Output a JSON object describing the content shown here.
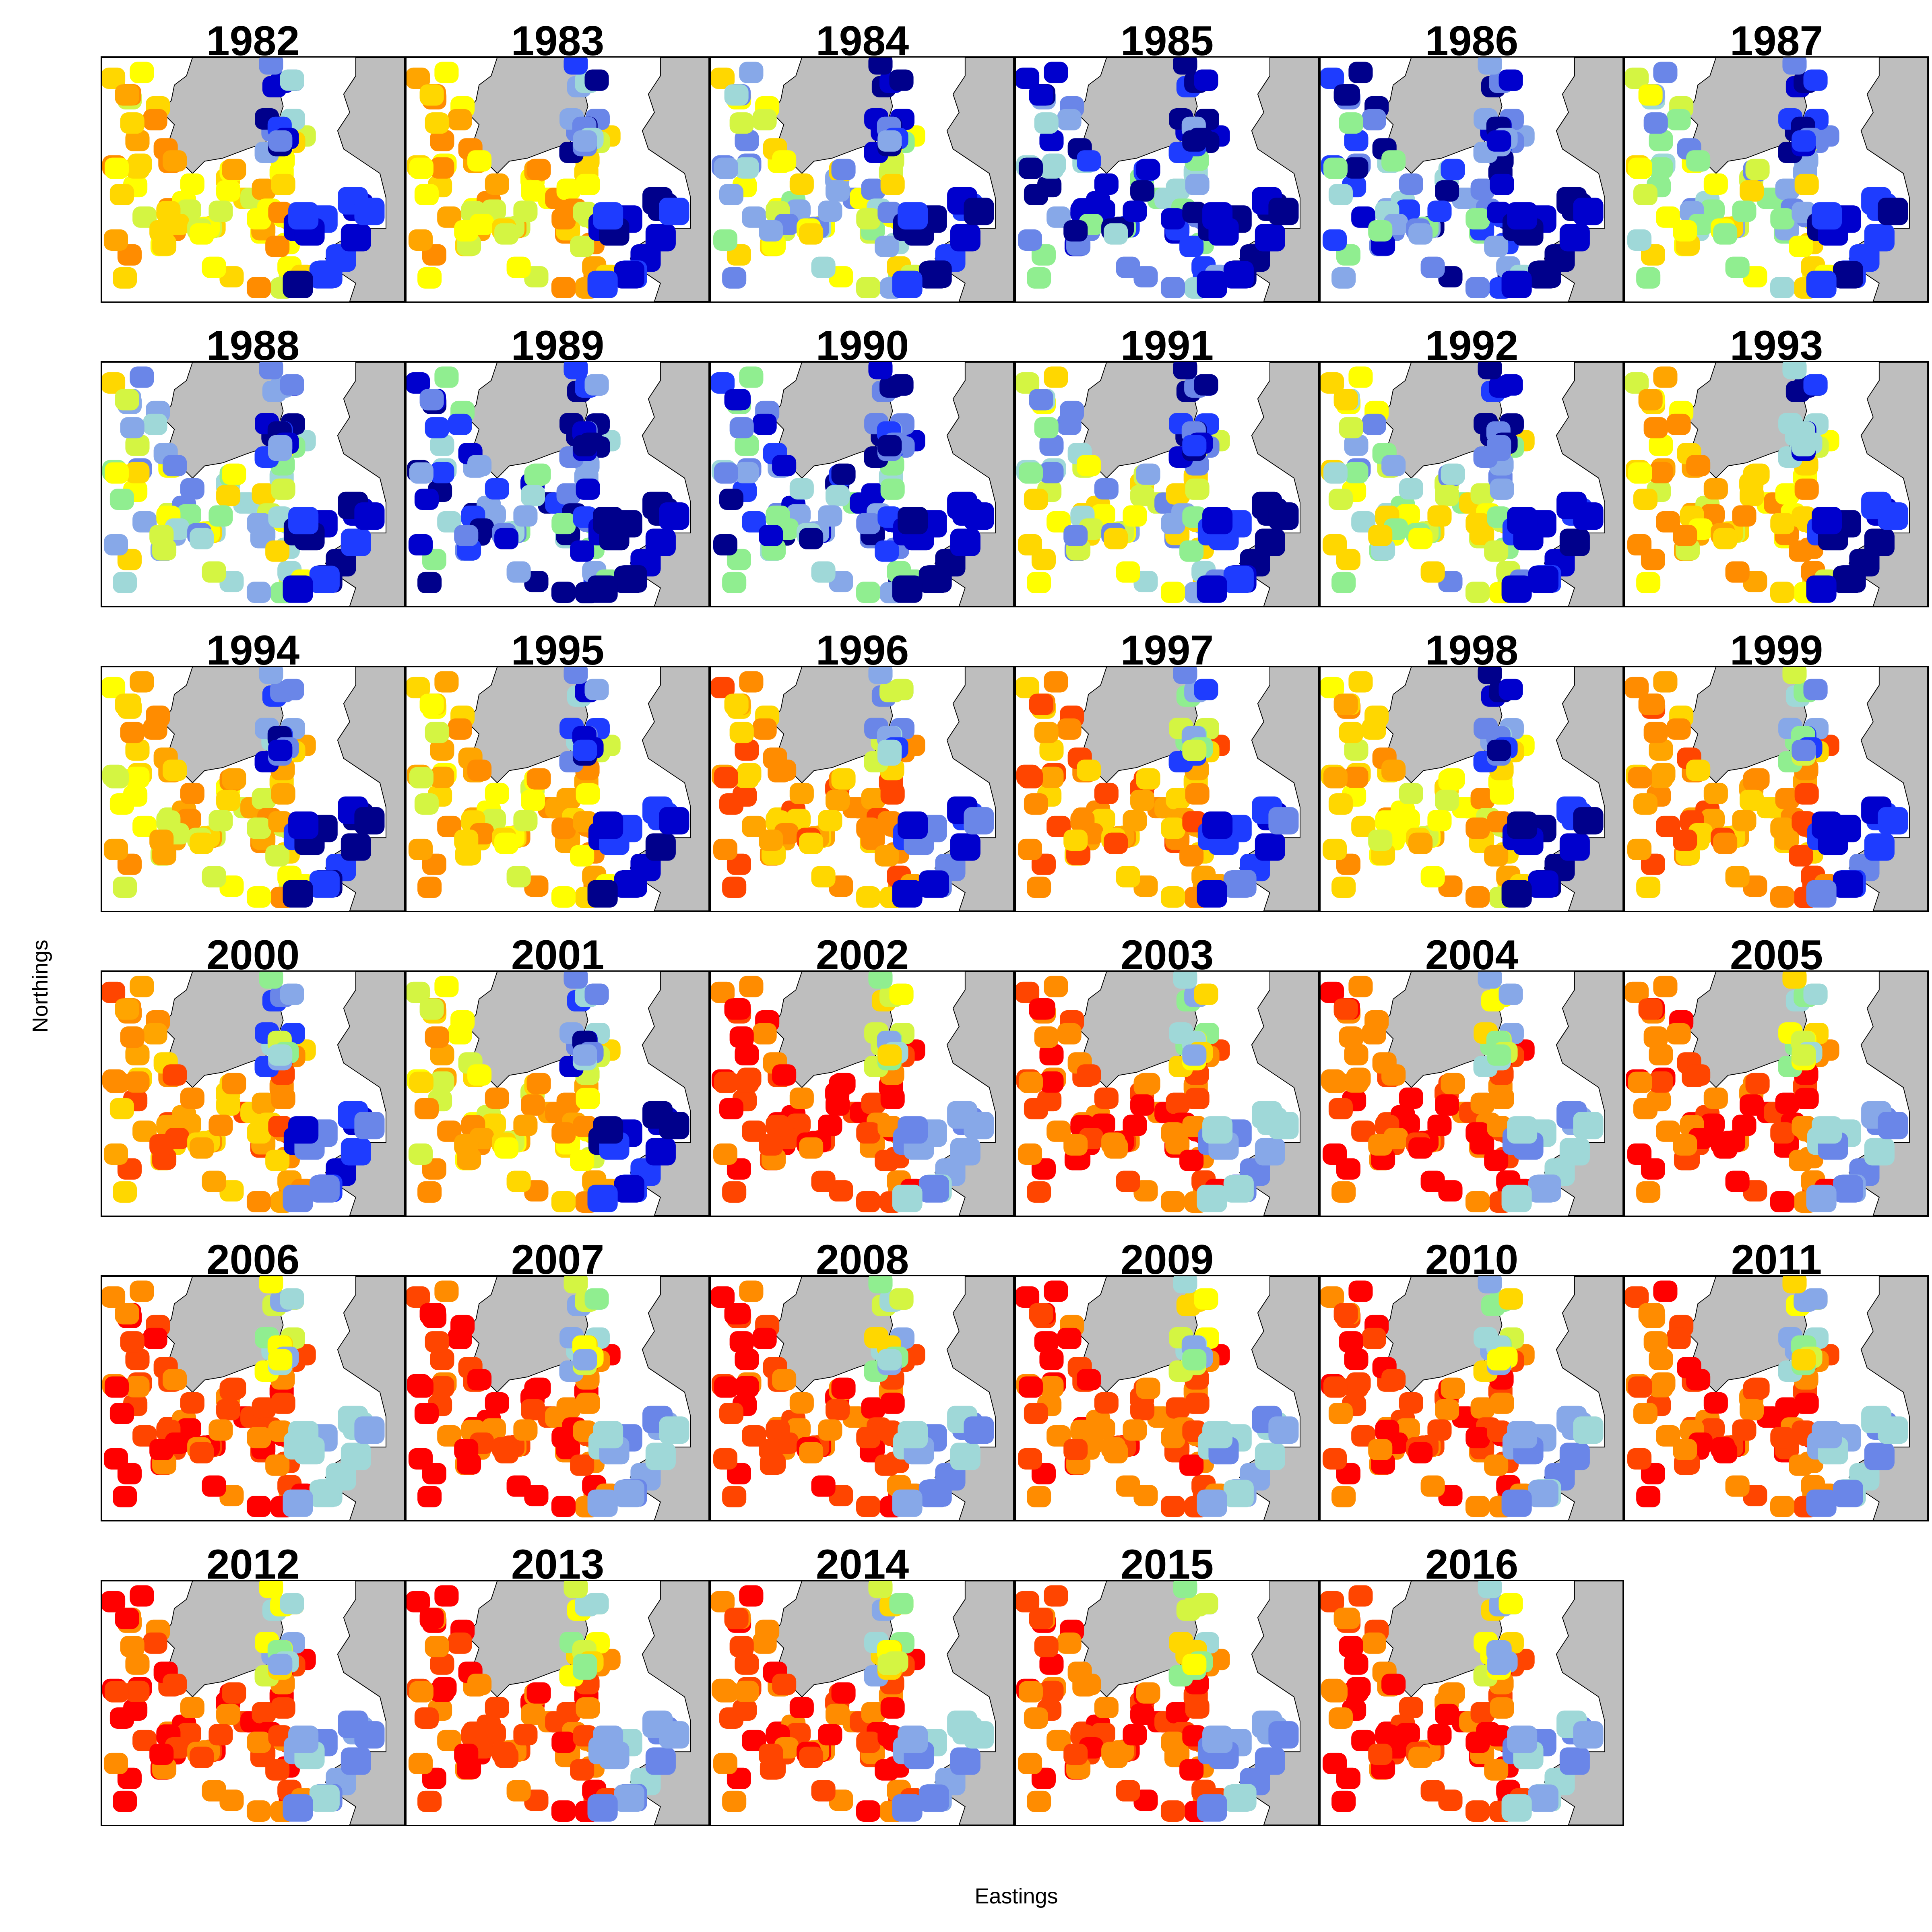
{
  "figure": {
    "xlabel": "Eastings",
    "ylabel": "Northings"
  },
  "panels": [
    {
      "year": "1982",
      "palette": "warm-mixed"
    },
    {
      "year": "1983",
      "palette": "warm-mixed"
    },
    {
      "year": "1984",
      "palette": "mixed"
    },
    {
      "year": "1985",
      "palette": "cool-mixed"
    },
    {
      "year": "1986",
      "palette": "cool-mixed"
    },
    {
      "year": "1987",
      "palette": "mixed"
    },
    {
      "year": "1988",
      "palette": "mixed"
    },
    {
      "year": "1989",
      "palette": "cool-mixed"
    },
    {
      "year": "1990",
      "palette": "cool-mixed"
    },
    {
      "year": "1991",
      "palette": "mixed"
    },
    {
      "year": "1992",
      "palette": "mixed"
    },
    {
      "year": "1993",
      "palette": "warm-mixed"
    },
    {
      "year": "1994",
      "palette": "warm-mixed"
    },
    {
      "year": "1995",
      "palette": "warm-mixed"
    },
    {
      "year": "1996",
      "palette": "warm"
    },
    {
      "year": "1997",
      "palette": "warm"
    },
    {
      "year": "1998",
      "palette": "warm-mixed"
    },
    {
      "year": "1999",
      "palette": "warm"
    },
    {
      "year": "2000",
      "palette": "warm"
    },
    {
      "year": "2001",
      "palette": "warm-mixed"
    },
    {
      "year": "2002",
      "palette": "hot"
    },
    {
      "year": "2003",
      "palette": "hot"
    },
    {
      "year": "2004",
      "palette": "hot"
    },
    {
      "year": "2005",
      "palette": "hot"
    },
    {
      "year": "2006",
      "palette": "hot"
    },
    {
      "year": "2007",
      "palette": "hot"
    },
    {
      "year": "2008",
      "palette": "hot"
    },
    {
      "year": "2009",
      "palette": "hot"
    },
    {
      "year": "2010",
      "palette": "hot"
    },
    {
      "year": "2011",
      "palette": "hot"
    },
    {
      "year": "2012",
      "palette": "hot"
    },
    {
      "year": "2013",
      "palette": "hot"
    },
    {
      "year": "2014",
      "palette": "hot"
    },
    {
      "year": "2015",
      "palette": "hot"
    },
    {
      "year": "2016",
      "palette": "hot"
    }
  ],
  "colors": {
    "land": "#bebebe",
    "sea": "#ffffff",
    "coast": "#000000",
    "scale": [
      "#ff0000",
      "#ff4500",
      "#ff8c00",
      "#ffa500",
      "#ffd700",
      "#ffff00",
      "#d4f542",
      "#90ee90",
      "#9fd8d8",
      "#87a8e8",
      "#6a86e8",
      "#1e3cff",
      "#0000cd",
      "#00008b"
    ]
  }
}
